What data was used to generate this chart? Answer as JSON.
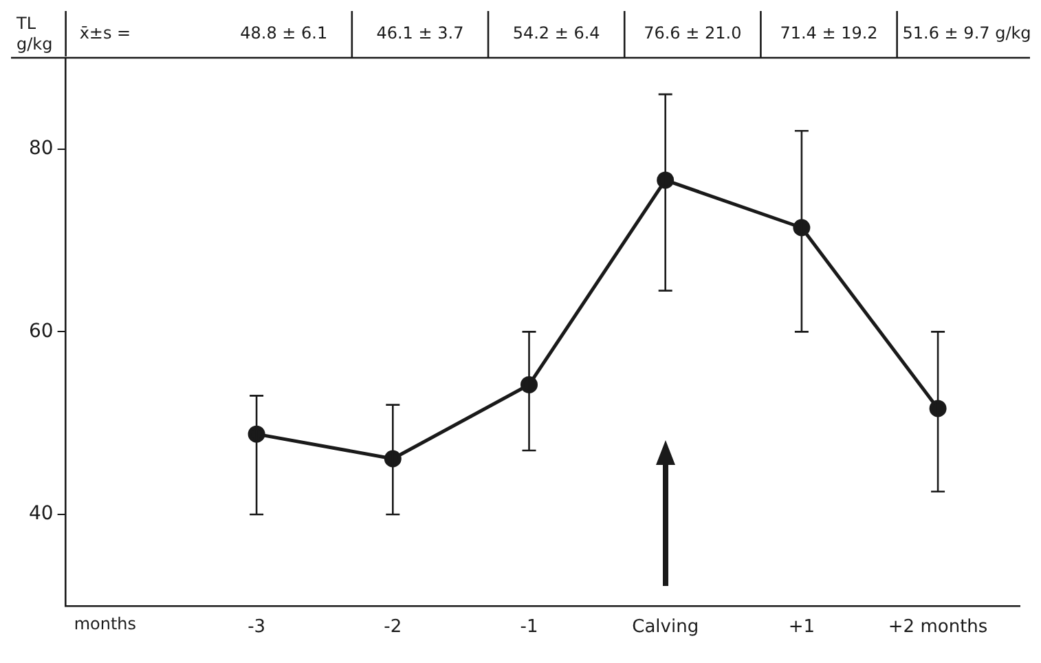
{
  "chart_data": {
    "type": "line",
    "categories": [
      "-3",
      "-2",
      "-1",
      "Calving",
      "+1",
      "+2 months"
    ],
    "values": [
      48.8,
      46.1,
      54.2,
      76.6,
      71.4,
      51.6
    ],
    "errors": [
      [
        40,
        53
      ],
      [
        40,
        52
      ],
      [
        47,
        60
      ],
      [
        64.5,
        86
      ],
      [
        60,
        82
      ],
      [
        42.5,
        60
      ]
    ],
    "annotations": [
      "x̄±s =",
      "48.8 ± 6.1",
      "46.1 ± 3.7",
      "54.2 ± 6.4",
      "76.6 ± 21.0",
      "71.4 ± 19.2",
      "51.6 ± 9.7 g/kg"
    ],
    "xlabel": "months",
    "ylabel": "TL g/kg",
    "color": "#1a1a1a",
    "marker": "circle",
    "line_style": "solid",
    "ylim": [
      30,
      90
    ],
    "yticks": [
      40,
      60,
      80
    ],
    "grid": false,
    "legend": false
  }
}
